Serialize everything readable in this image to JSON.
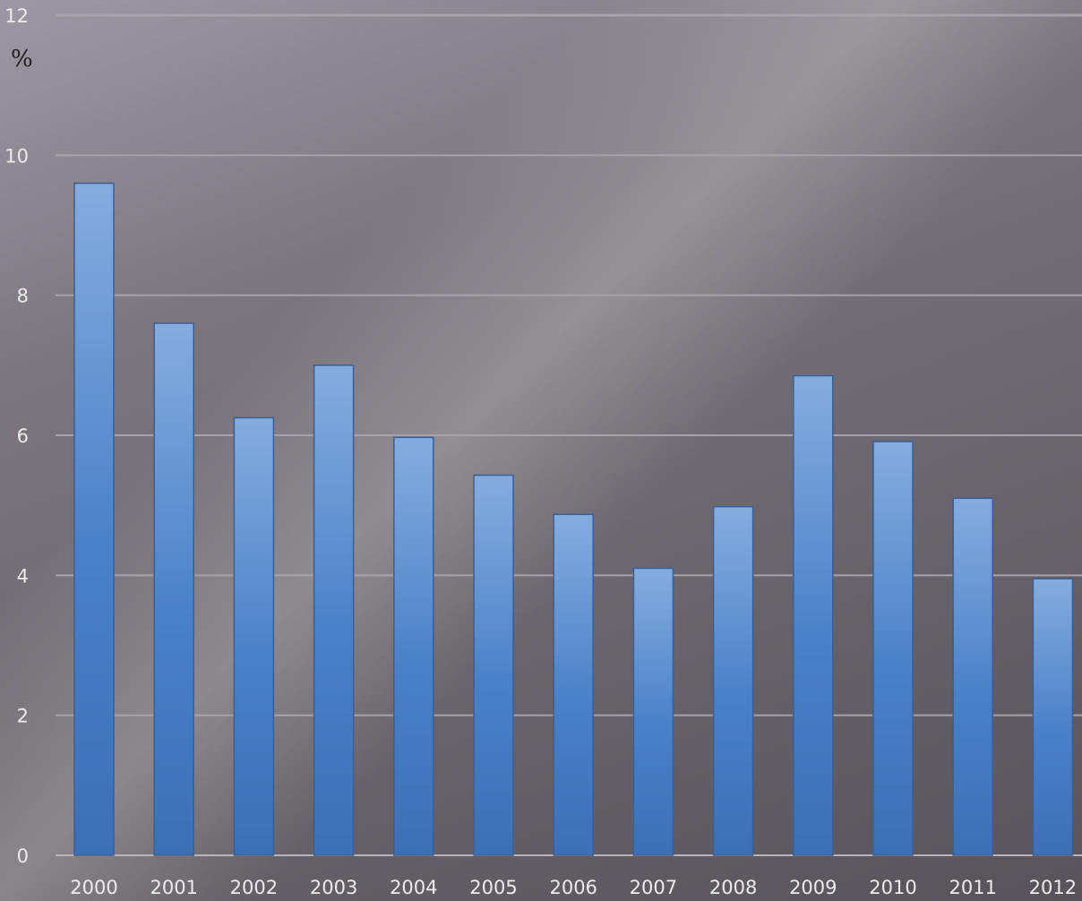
{
  "chart_data": {
    "type": "bar",
    "title": "",
    "xlabel": "",
    "ylabel": "%",
    "ylim": [
      0,
      12
    ],
    "yticks": [
      0,
      2,
      4,
      6,
      8,
      10,
      12
    ],
    "grid": true,
    "legend": "none",
    "categories": [
      "2000",
      "2001",
      "2002",
      "2003",
      "2004",
      "2005",
      "2006",
      "2007",
      "2008",
      "2009",
      "2010",
      "2011",
      "2012"
    ],
    "series": [
      {
        "values": [
          9.6,
          7.6,
          6.25,
          7.0,
          5.97,
          5.43,
          4.87,
          4.1,
          4.98,
          6.85,
          5.91,
          5.1,
          3.95
        ],
        "color": "#4a80c8"
      }
    ]
  }
}
